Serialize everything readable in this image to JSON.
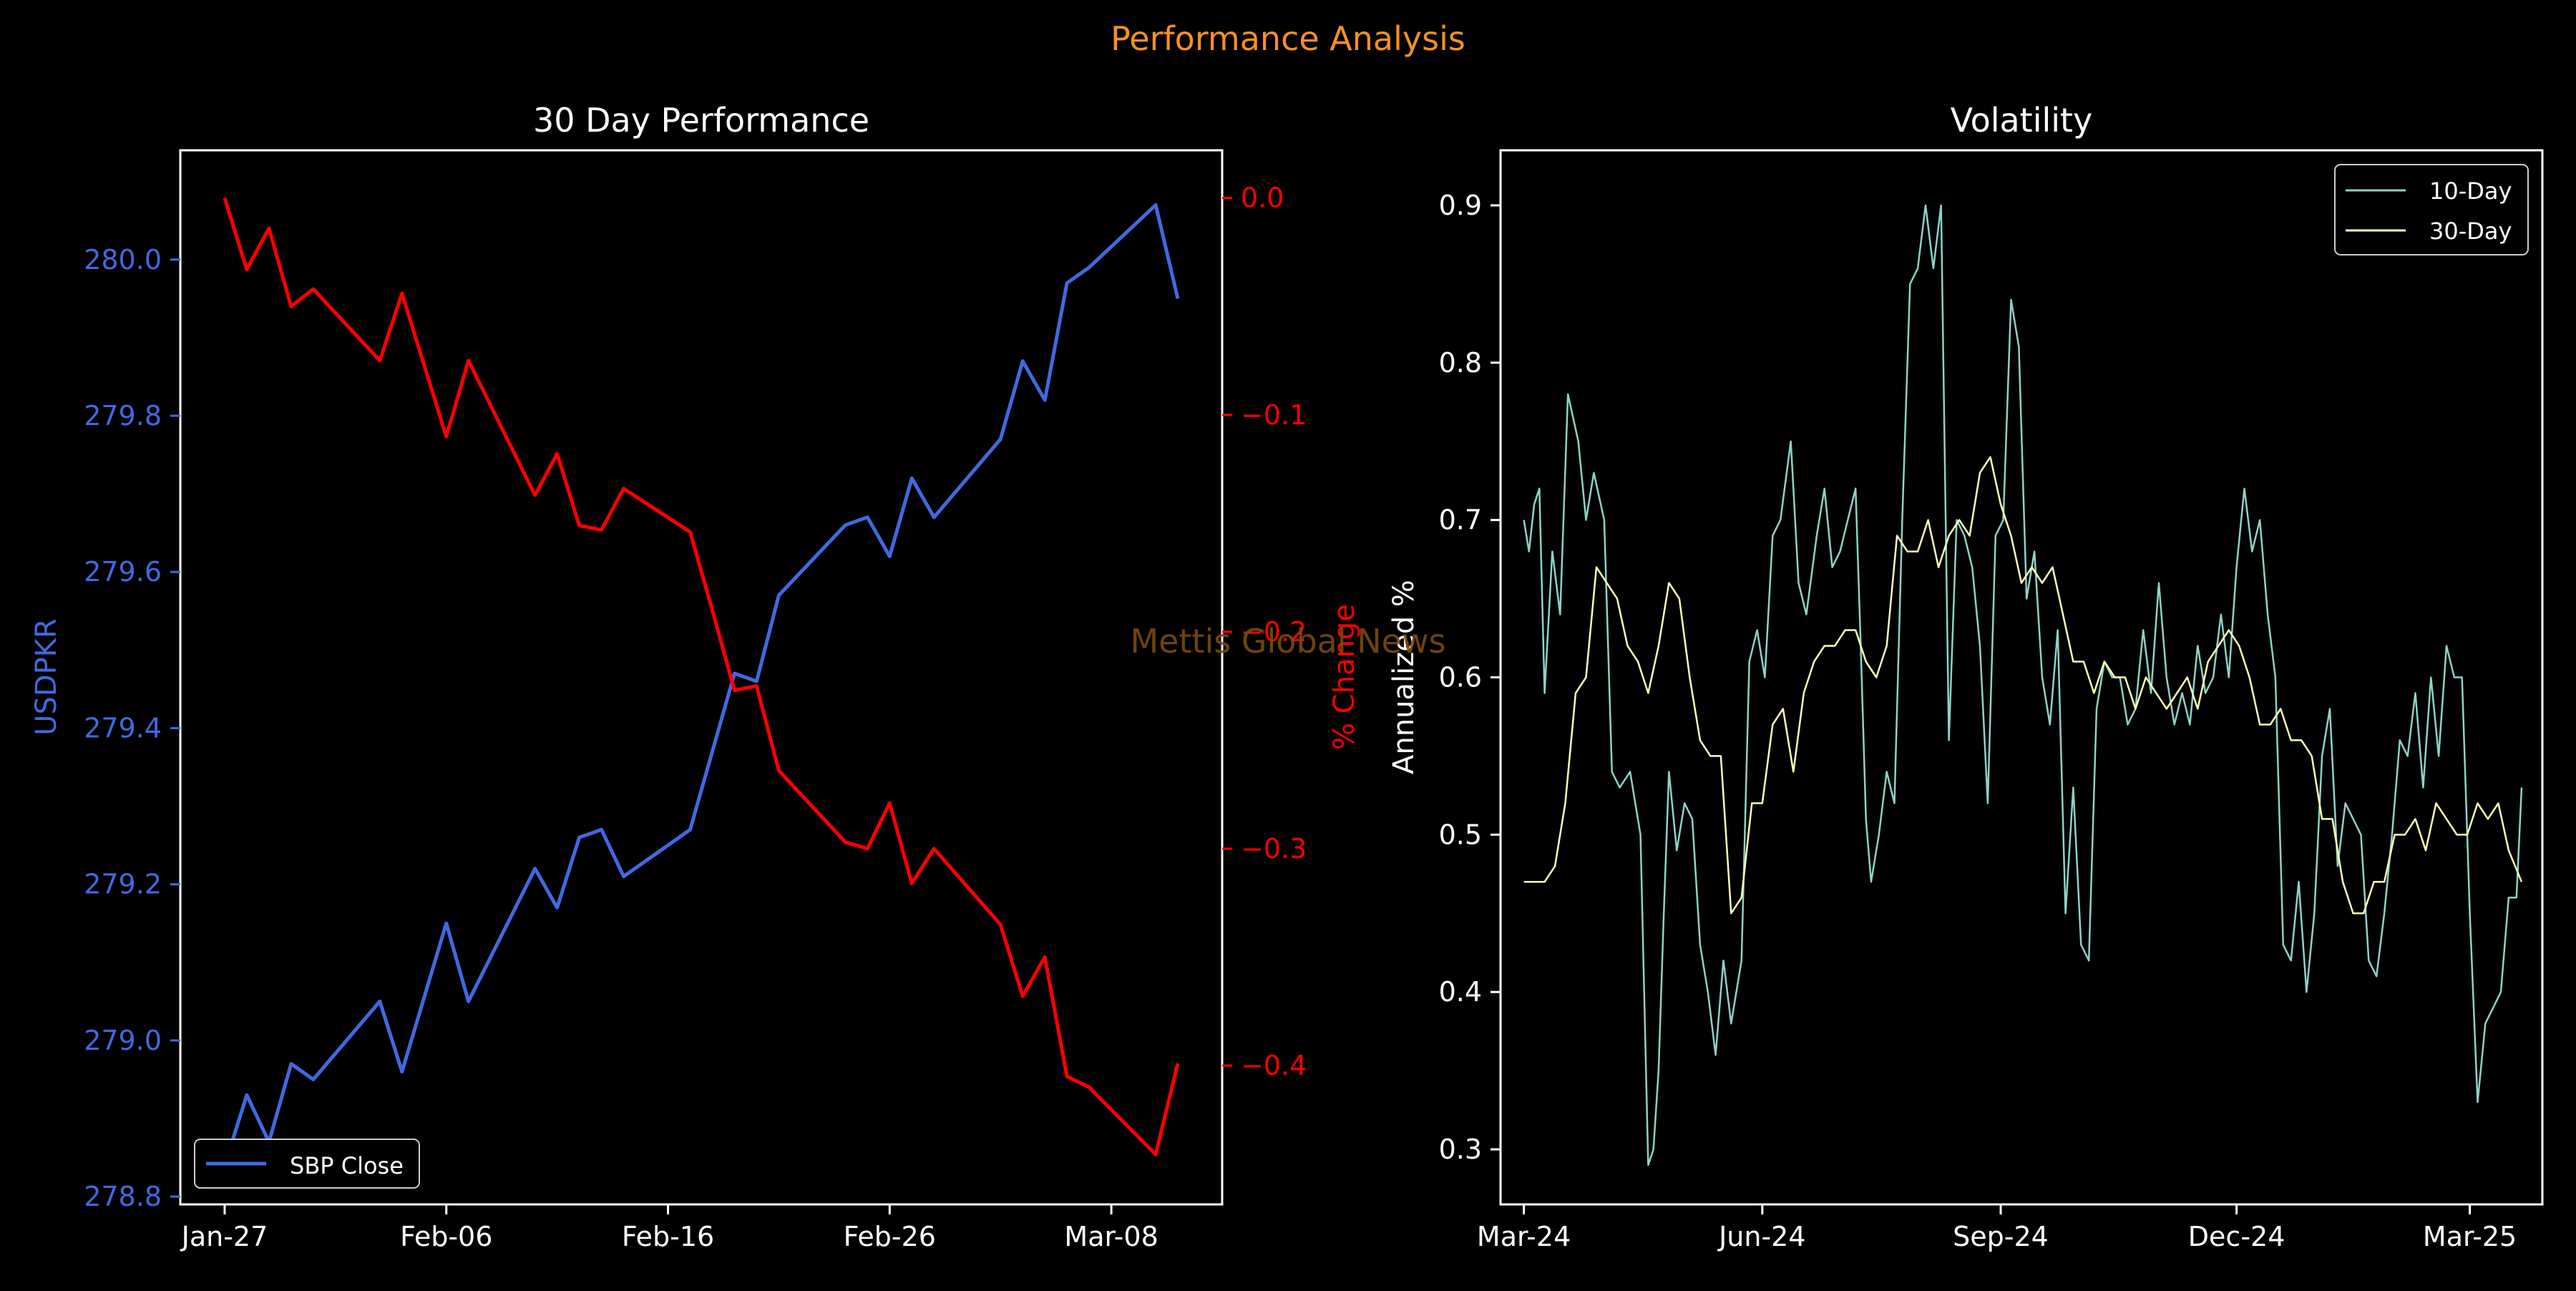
{
  "figure": {
    "suptitle": "Performance Analysis",
    "watermark": "Mettis Global News",
    "colors": {
      "background": "#000000",
      "suptitle": "#f5911e",
      "watermark": "#7a4a10",
      "axis": "#ffffff",
      "usd_line": "#4169e1",
      "pct_line": "#ff0000",
      "vol10": "#8dd3c7",
      "vol30": "#ffffb3"
    }
  },
  "chart_data": [
    {
      "type": "line",
      "title": "30 Day Performance",
      "ylabel": "USDPKR",
      "y2label": "% Change",
      "ylim": [
        278.79,
        280.14
      ],
      "y2lim": [
        -0.464,
        0.022
      ],
      "yticks": [
        278.8,
        279.0,
        279.2,
        279.4,
        279.6,
        279.8,
        280.0
      ],
      "y2ticks": [
        0.0,
        -0.1,
        -0.2,
        -0.3,
        -0.4
      ],
      "y2ticklabels": [
        "0.0",
        "−0.1",
        "−0.2",
        "−0.3",
        "−0.4"
      ],
      "xlim": [
        "2025-01-25",
        "2025-03-13"
      ],
      "xticks": [
        "2025-01-27",
        "2025-02-06",
        "2025-02-16",
        "2025-02-26",
        "2025-03-08"
      ],
      "xticklabels": [
        "Jan-27",
        "Feb-06",
        "Feb-16",
        "Feb-26",
        "Mar-08"
      ],
      "legend": {
        "placement": "lower-left",
        "entries": [
          "SBP Close"
        ]
      },
      "grid": false,
      "series": [
        {
          "name": "SBP Close",
          "axis": "left",
          "x": [
            "2025-01-27",
            "2025-01-28",
            "2025-01-29",
            "2025-01-30",
            "2025-01-31",
            "2025-02-03",
            "2025-02-04",
            "2025-02-06",
            "2025-02-07",
            "2025-02-10",
            "2025-02-11",
            "2025-02-12",
            "2025-02-13",
            "2025-02-14",
            "2025-02-17",
            "2025-02-18",
            "2025-02-19",
            "2025-02-20",
            "2025-02-21",
            "2025-02-24",
            "2025-02-25",
            "2025-02-26",
            "2025-02-27",
            "2025-02-28",
            "2025-03-03",
            "2025-03-04",
            "2025-03-05",
            "2025-03-06",
            "2025-03-07",
            "2025-03-10",
            "2025-03-11"
          ],
          "values": [
            278.84,
            278.93,
            278.87,
            278.97,
            278.95,
            279.05,
            278.96,
            279.15,
            279.05,
            279.22,
            279.17,
            279.26,
            279.27,
            279.21,
            279.27,
            279.37,
            279.47,
            279.46,
            279.57,
            279.66,
            279.67,
            279.62,
            279.72,
            279.67,
            279.77,
            279.87,
            279.82,
            279.97,
            279.99,
            280.07,
            279.95
          ]
        },
        {
          "name": "% Change",
          "axis": "right",
          "x": [
            "2025-01-27",
            "2025-01-28",
            "2025-01-29",
            "2025-01-30",
            "2025-01-31",
            "2025-02-03",
            "2025-02-04",
            "2025-02-06",
            "2025-02-07",
            "2025-02-10",
            "2025-02-11",
            "2025-02-12",
            "2025-02-13",
            "2025-02-14",
            "2025-02-17",
            "2025-02-18",
            "2025-02-19",
            "2025-02-20",
            "2025-02-21",
            "2025-02-24",
            "2025-02-25",
            "2025-02-26",
            "2025-02-27",
            "2025-02-28",
            "2025-03-03",
            "2025-03-04",
            "2025-03-05",
            "2025-03-06",
            "2025-03-07",
            "2025-03-10",
            "2025-03-11"
          ],
          "values": [
            0.0,
            -0.033,
            -0.014,
            -0.05,
            -0.042,
            -0.075,
            -0.044,
            -0.11,
            -0.075,
            -0.137,
            -0.118,
            -0.151,
            -0.153,
            -0.134,
            -0.154,
            -0.19,
            -0.227,
            -0.225,
            -0.264,
            -0.297,
            -0.3,
            -0.279,
            -0.316,
            -0.3,
            -0.335,
            -0.368,
            -0.35,
            -0.405,
            -0.41,
            -0.441,
            -0.399
          ]
        }
      ]
    },
    {
      "type": "line",
      "title": "Volatility",
      "ylabel": "Annualized %",
      "ylim": [
        0.265,
        0.935
      ],
      "yticks": [
        0.3,
        0.4,
        0.5,
        0.6,
        0.7,
        0.8,
        0.9
      ],
      "yticklabels": [
        "0.3",
        "0.4",
        "0.5",
        "0.6",
        "0.7",
        "0.8",
        "0.9"
      ],
      "xlim": [
        "2024-02-21",
        "2025-03-29"
      ],
      "xticks": [
        "2024-03-01",
        "2024-06-01",
        "2024-09-01",
        "2024-12-01",
        "2025-03-01"
      ],
      "xticklabels": [
        "Mar-24",
        "Jun-24",
        "Sep-24",
        "Dec-24",
        "Mar-25"
      ],
      "legend": {
        "placement": "top-right",
        "entries": [
          "10-Day",
          "30-Day"
        ]
      },
      "grid": false,
      "series": [
        {
          "name": "10-Day",
          "x": [
            "2024-03-01",
            "2024-03-03",
            "2024-03-05",
            "2024-03-07",
            "2024-03-09",
            "2024-03-12",
            "2024-03-15",
            "2024-03-18",
            "2024-03-22",
            "2024-03-25",
            "2024-03-28",
            "2024-04-01",
            "2024-04-04",
            "2024-04-07",
            "2024-04-11",
            "2024-04-15",
            "2024-04-18",
            "2024-04-20",
            "2024-04-22",
            "2024-04-24",
            "2024-04-26",
            "2024-04-29",
            "2024-05-02",
            "2024-05-05",
            "2024-05-08",
            "2024-05-11",
            "2024-05-14",
            "2024-05-17",
            "2024-05-20",
            "2024-05-24",
            "2024-05-27",
            "2024-05-30",
            "2024-06-02",
            "2024-06-05",
            "2024-06-08",
            "2024-06-12",
            "2024-06-15",
            "2024-06-18",
            "2024-06-22",
            "2024-06-25",
            "2024-06-28",
            "2024-07-01",
            "2024-07-04",
            "2024-07-07",
            "2024-07-09",
            "2024-07-11",
            "2024-07-13",
            "2024-07-16",
            "2024-07-19",
            "2024-07-22",
            "2024-07-25",
            "2024-07-28",
            "2024-07-31",
            "2024-08-03",
            "2024-08-06",
            "2024-08-09",
            "2024-08-12",
            "2024-08-15",
            "2024-08-18",
            "2024-08-21",
            "2024-08-24",
            "2024-08-27",
            "2024-08-30",
            "2024-09-02",
            "2024-09-05",
            "2024-09-08",
            "2024-09-11",
            "2024-09-14",
            "2024-09-17",
            "2024-09-20",
            "2024-09-23",
            "2024-09-26",
            "2024-09-29",
            "2024-10-02",
            "2024-10-05",
            "2024-10-08",
            "2024-10-11",
            "2024-10-14",
            "2024-10-17",
            "2024-10-20",
            "2024-10-23",
            "2024-10-26",
            "2024-10-29",
            "2024-11-01",
            "2024-11-04",
            "2024-11-07",
            "2024-11-10",
            "2024-11-13",
            "2024-11-16",
            "2024-11-19",
            "2024-11-22",
            "2024-11-25",
            "2024-11-28",
            "2024-12-01",
            "2024-12-04",
            "2024-12-07",
            "2024-12-10",
            "2024-12-13",
            "2024-12-16",
            "2024-12-19",
            "2024-12-22",
            "2024-12-25",
            "2024-12-28",
            "2024-12-31",
            "2025-01-03",
            "2025-01-06",
            "2025-01-09",
            "2025-01-12",
            "2025-01-15",
            "2025-01-18",
            "2025-01-21",
            "2025-01-24",
            "2025-01-27",
            "2025-01-30",
            "2025-02-02",
            "2025-02-05",
            "2025-02-08",
            "2025-02-11",
            "2025-02-14",
            "2025-02-17",
            "2025-02-20",
            "2025-02-23",
            "2025-02-26",
            "2025-03-01",
            "2025-03-04",
            "2025-03-07",
            "2025-03-10",
            "2025-03-13",
            "2025-03-16",
            "2025-03-19",
            "2025-03-21"
          ],
          "values": [
            0.7,
            0.68,
            0.71,
            0.72,
            0.59,
            0.68,
            0.64,
            0.78,
            0.75,
            0.7,
            0.73,
            0.7,
            0.54,
            0.53,
            0.54,
            0.5,
            0.29,
            0.3,
            0.35,
            0.45,
            0.54,
            0.49,
            0.52,
            0.51,
            0.43,
            0.4,
            0.36,
            0.42,
            0.38,
            0.42,
            0.61,
            0.63,
            0.6,
            0.69,
            0.7,
            0.75,
            0.66,
            0.64,
            0.69,
            0.72,
            0.67,
            0.68,
            0.7,
            0.72,
            0.62,
            0.51,
            0.47,
            0.5,
            0.54,
            0.52,
            0.7,
            0.85,
            0.86,
            0.9,
            0.86,
            0.9,
            0.56,
            0.7,
            0.69,
            0.67,
            0.62,
            0.52,
            0.69,
            0.7,
            0.84,
            0.81,
            0.65,
            0.68,
            0.6,
            0.57,
            0.63,
            0.45,
            0.53,
            0.43,
            0.42,
            0.58,
            0.61,
            0.6,
            0.6,
            0.57,
            0.58,
            0.63,
            0.59,
            0.66,
            0.6,
            0.57,
            0.59,
            0.57,
            0.62,
            0.59,
            0.6,
            0.64,
            0.6,
            0.67,
            0.72,
            0.68,
            0.7,
            0.64,
            0.6,
            0.43,
            0.42,
            0.47,
            0.4,
            0.45,
            0.55,
            0.58,
            0.48,
            0.52,
            0.51,
            0.5,
            0.42,
            0.41,
            0.45,
            0.5,
            0.56,
            0.55,
            0.59,
            0.53,
            0.6,
            0.55,
            0.62,
            0.6,
            0.6,
            0.45,
            0.33,
            0.38,
            0.39,
            0.4,
            0.46,
            0.46,
            0.53
          ]
        },
        {
          "name": "30-Day",
          "x": [
            "2024-03-01",
            "2024-03-05",
            "2024-03-09",
            "2024-03-13",
            "2024-03-17",
            "2024-03-21",
            "2024-03-25",
            "2024-03-29",
            "2024-04-02",
            "2024-04-06",
            "2024-04-10",
            "2024-04-14",
            "2024-04-18",
            "2024-04-22",
            "2024-04-26",
            "2024-04-30",
            "2024-05-04",
            "2024-05-08",
            "2024-05-12",
            "2024-05-16",
            "2024-05-20",
            "2024-05-24",
            "2024-05-28",
            "2024-06-01",
            "2024-06-05",
            "2024-06-09",
            "2024-06-13",
            "2024-06-17",
            "2024-06-21",
            "2024-06-25",
            "2024-06-29",
            "2024-07-03",
            "2024-07-07",
            "2024-07-11",
            "2024-07-15",
            "2024-07-19",
            "2024-07-23",
            "2024-07-27",
            "2024-07-31",
            "2024-08-04",
            "2024-08-08",
            "2024-08-12",
            "2024-08-16",
            "2024-08-20",
            "2024-08-24",
            "2024-08-28",
            "2024-09-01",
            "2024-09-05",
            "2024-09-09",
            "2024-09-13",
            "2024-09-17",
            "2024-09-21",
            "2024-09-25",
            "2024-09-29",
            "2024-10-03",
            "2024-10-07",
            "2024-10-11",
            "2024-10-15",
            "2024-10-19",
            "2024-10-23",
            "2024-10-27",
            "2024-10-31",
            "2024-11-04",
            "2024-11-08",
            "2024-11-12",
            "2024-11-16",
            "2024-11-20",
            "2024-11-24",
            "2024-11-28",
            "2024-12-02",
            "2024-12-06",
            "2024-12-10",
            "2024-12-14",
            "2024-12-18",
            "2024-12-22",
            "2024-12-26",
            "2024-12-30",
            "2025-01-03",
            "2025-01-07",
            "2025-01-11",
            "2025-01-15",
            "2025-01-19",
            "2025-01-23",
            "2025-01-27",
            "2025-01-31",
            "2025-02-04",
            "2025-02-08",
            "2025-02-12",
            "2025-02-16",
            "2025-02-20",
            "2025-02-24",
            "2025-02-28",
            "2025-03-04",
            "2025-03-08",
            "2025-03-12",
            "2025-03-16",
            "2025-03-21"
          ],
          "values": [
            0.47,
            0.47,
            0.47,
            0.48,
            0.52,
            0.59,
            0.6,
            0.67,
            0.66,
            0.65,
            0.62,
            0.61,
            0.59,
            0.62,
            0.66,
            0.65,
            0.6,
            0.56,
            0.55,
            0.55,
            0.45,
            0.46,
            0.52,
            0.52,
            0.57,
            0.58,
            0.54,
            0.59,
            0.61,
            0.62,
            0.62,
            0.63,
            0.63,
            0.61,
            0.6,
            0.62,
            0.69,
            0.68,
            0.68,
            0.7,
            0.67,
            0.69,
            0.7,
            0.69,
            0.73,
            0.74,
            0.71,
            0.69,
            0.66,
            0.67,
            0.66,
            0.67,
            0.64,
            0.61,
            0.61,
            0.59,
            0.61,
            0.6,
            0.6,
            0.58,
            0.6,
            0.59,
            0.58,
            0.59,
            0.6,
            0.58,
            0.61,
            0.62,
            0.63,
            0.62,
            0.6,
            0.57,
            0.57,
            0.58,
            0.56,
            0.56,
            0.55,
            0.51,
            0.51,
            0.47,
            0.45,
            0.45,
            0.47,
            0.47,
            0.5,
            0.5,
            0.51,
            0.49,
            0.52,
            0.51,
            0.5,
            0.5,
            0.52,
            0.51,
            0.52,
            0.49,
            0.47
          ]
        }
      ]
    }
  ]
}
